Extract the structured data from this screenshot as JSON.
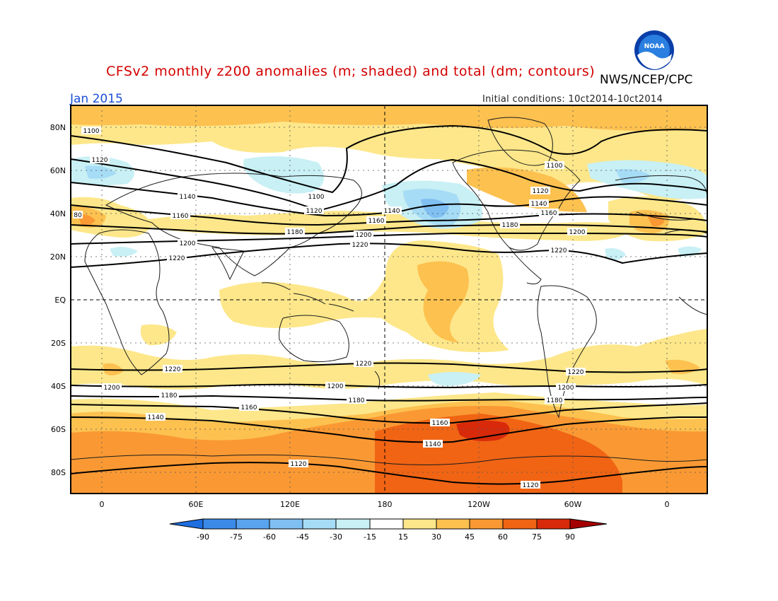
{
  "header": {
    "title": "CFSv2 monthly z200 anomalies (m; shaded) and total (dm; contours)",
    "agency": "NWS/NCEP/CPC",
    "period": "Jan 2015",
    "initial_conditions": "Initial conditions: 10ct2014-10ct2014",
    "logo_text": "NOAA"
  },
  "axes": {
    "lat_labels": [
      "80N",
      "60N",
      "40N",
      "20N",
      "EQ",
      "20S",
      "40S",
      "60S",
      "80S"
    ],
    "lon_labels": [
      "0",
      "60E",
      "120E",
      "180",
      "120W",
      "60W",
      "0"
    ]
  },
  "contour_labels": [
    "1100",
    "1120",
    "1140",
    "1160",
    "1180",
    "1200",
    "1220",
    "80"
  ],
  "legend": {
    "ticks": [
      "-90",
      "-75",
      "-60",
      "-45",
      "-30",
      "-15",
      "15",
      "30",
      "45",
      "60",
      "75",
      "90"
    ],
    "colors": [
      "#1e6ee0",
      "#3b8ae8",
      "#5aa3ee",
      "#80bff2",
      "#a6dcf5",
      "#c8f0f5",
      "#ffffff",
      "#fde78a",
      "#fdc150",
      "#fa9933",
      "#f06414",
      "#d82a0a",
      "#a50000",
      "#7a0000"
    ]
  },
  "colors": {
    "title": "#d40000",
    "period": "#1a4fd6",
    "map_bg": "#ffffff",
    "pos_30": "#fde78a",
    "pos_45": "#fdc150",
    "pos_60": "#fa9933",
    "pos_75": "#f06414",
    "pos_90": "#d82a0a",
    "neg_15": "#c8f0f5",
    "neg_30": "#a6dcf5",
    "neg_45": "#80bff2"
  }
}
